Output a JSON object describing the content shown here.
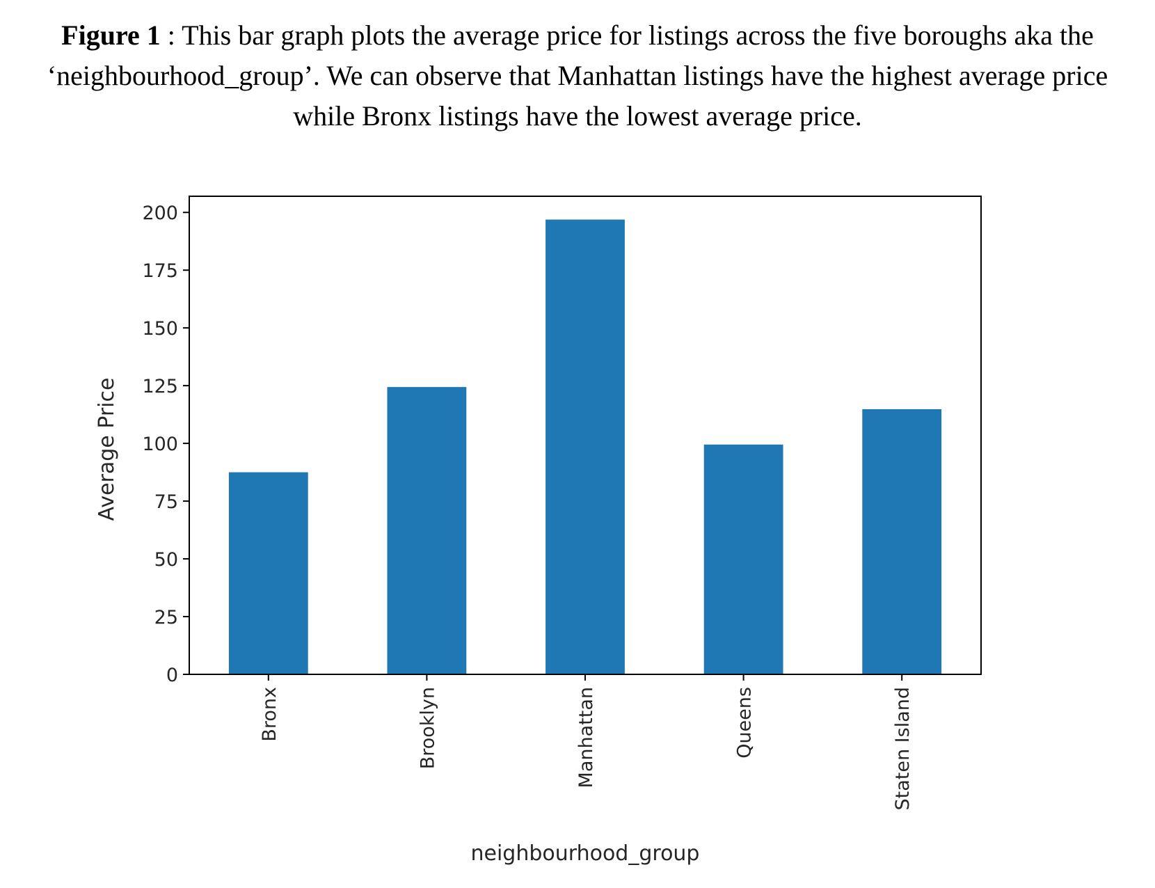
{
  "caption": {
    "figure_label": "Figure 1",
    "text": " : This bar graph plots the average price for listings across the five boroughs aka the ‘neighbourhood_group’. We can observe that Manhattan listings have the highest average price while Bronx listings have the lowest average price."
  },
  "chart_data": {
    "type": "bar",
    "categories": [
      "Bronx",
      "Brooklyn",
      "Manhattan",
      "Queens",
      "Staten Island"
    ],
    "values": [
      87.5,
      124.4,
      196.9,
      99.5,
      114.8
    ],
    "xlabel": "neighbourhood_group",
    "ylabel": "Average Price",
    "ylim": [
      0,
      207
    ],
    "yticks": [
      0,
      25,
      50,
      75,
      100,
      125,
      150,
      175,
      200
    ],
    "bar_color": "#1f77b4",
    "grid": false,
    "legend": false
  }
}
